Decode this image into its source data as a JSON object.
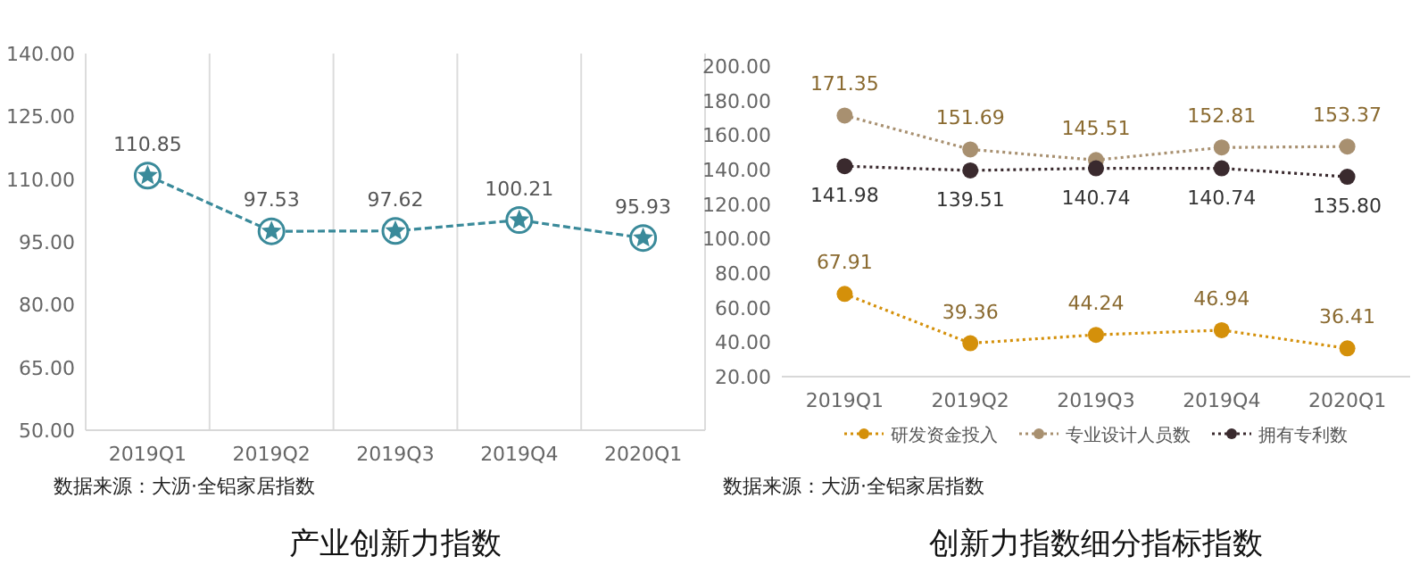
{
  "chart_data": [
    {
      "type": "line",
      "title": "产业创新力指数",
      "categories": [
        "2019Q1",
        "2019Q2",
        "2019Q3",
        "2019Q4",
        "2020Q1"
      ],
      "series": [
        {
          "color": "#3a8a9a",
          "values": [
            110.85,
            97.53,
            97.62,
            100.21,
            95.93
          ]
        }
      ],
      "ylim": [
        50,
        140
      ],
      "yticks": [
        {
          "value": 50,
          "label": "50.00"
        },
        {
          "value": 65,
          "label": "65.00"
        },
        {
          "value": 80,
          "label": "80.00"
        },
        {
          "value": 95,
          "label": "95.00"
        },
        {
          "value": 110,
          "label": "110.00"
        },
        {
          "value": 125,
          "label": "125.00"
        },
        {
          "value": 140,
          "label": "140.00"
        }
      ],
      "grid": "x",
      "marker": "star",
      "line_style": "dashed",
      "data_labels": true,
      "annotations": [
        "数据来源：大沥·全铝家居指数"
      ]
    },
    {
      "type": "line",
      "title": "创新力指数细分指标指数",
      "categories": [
        "2019Q1",
        "2019Q2",
        "2019Q3",
        "2019Q4",
        "2020Q1"
      ],
      "series": [
        {
          "name": "研发资金投入",
          "color": "#d4900a",
          "values": [
            67.91,
            39.36,
            44.24,
            46.94,
            36.41
          ]
        },
        {
          "name": "专业设计人员数",
          "color": "#a89070",
          "values": [
            171.35,
            151.69,
            145.51,
            152.81,
            153.37
          ]
        },
        {
          "name": "拥有专利数",
          "color": "#3a2a2e",
          "values": [
            141.98,
            139.51,
            140.74,
            140.74,
            135.8
          ],
          "value_labels": [
            "141.98",
            "139.51",
            "140.74",
            "140.74",
            "135.80"
          ]
        }
      ],
      "ylim": [
        20,
        200
      ],
      "yticks": [
        {
          "value": 20,
          "label": "20.00"
        },
        {
          "value": 40,
          "label": "40.00"
        },
        {
          "value": 60,
          "label": "60.00"
        },
        {
          "value": 80,
          "label": "80.00"
        },
        {
          "value": 100,
          "label": "100.00"
        },
        {
          "value": 120,
          "label": "120.00"
        },
        {
          "value": 140,
          "label": "140.00"
        },
        {
          "value": 160,
          "label": "160.00"
        },
        {
          "value": 180,
          "label": "180.00"
        },
        {
          "value": 200,
          "label": "200.00"
        }
      ],
      "legend": "bottom",
      "marker": "circle",
      "data_labels": true,
      "line_style": "dotted",
      "annotations": [
        "数据来源：大沥·全铝家居指数"
      ]
    }
  ]
}
